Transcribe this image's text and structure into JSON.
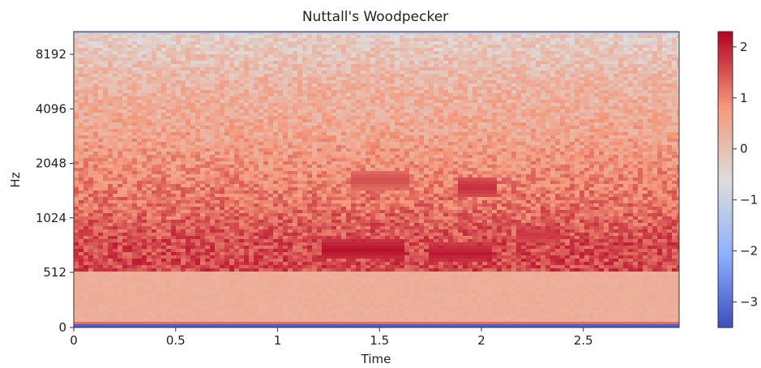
{
  "chart_data": {
    "type": "heatmap",
    "title": "Nuttall's Woodpecker",
    "xlabel": "Time",
    "ylabel": "Hz",
    "x_range": [
      0,
      2.97
    ],
    "x_ticks": [
      0,
      0.5,
      1,
      1.5,
      2,
      2.5
    ],
    "x_tick_labels": [
      "0",
      "0.5",
      "1",
      "1.5",
      "2",
      "2.5"
    ],
    "y_ticks": [
      0,
      512,
      1024,
      2048,
      4096,
      8192
    ],
    "y_tick_labels": [
      "0",
      "512",
      "1024",
      "2048",
      "4096",
      "8192"
    ],
    "y_scale": "symlog",
    "y_range": [
      0,
      11025
    ],
    "colorbar": {
      "colormap": "coolwarm",
      "range": [
        -3.5,
        2.3
      ],
      "ticks": [
        -3,
        -2,
        -1,
        0,
        1,
        2
      ],
      "tick_labels": [
        "−3",
        "−2",
        "−1",
        "0",
        "1",
        "2"
      ]
    },
    "bands": [
      {
        "from_hz": 0,
        "to_hz": 512,
        "approx_value": 0.4
      },
      {
        "from_hz": 512,
        "to_hz": 1024,
        "approx_value": 1.6
      },
      {
        "from_hz": 1024,
        "to_hz": 2048,
        "approx_value": 1.1
      },
      {
        "from_hz": 2048,
        "to_hz": 4096,
        "approx_value": 0.6
      },
      {
        "from_hz": 4096,
        "to_hz": 8192,
        "approx_value": 0.25
      },
      {
        "from_hz": 8192,
        "to_hz": 11025,
        "approx_value": -0.2
      }
    ],
    "hotspots": [
      {
        "t_start": 1.22,
        "t_end": 1.62,
        "freq_hz": 680,
        "approx_value": 2.2
      },
      {
        "t_start": 1.75,
        "t_end": 2.05,
        "freq_hz": 650,
        "approx_value": 2.1
      },
      {
        "t_start": 1.88,
        "t_end": 2.08,
        "freq_hz": 1500,
        "approx_value": 1.9
      },
      {
        "t_start": 2.18,
        "t_end": 2.38,
        "freq_hz": 820,
        "approx_value": 1.8
      },
      {
        "t_start": 1.35,
        "t_end": 1.65,
        "freq_hz": 1650,
        "approx_value": 1.6
      }
    ]
  }
}
